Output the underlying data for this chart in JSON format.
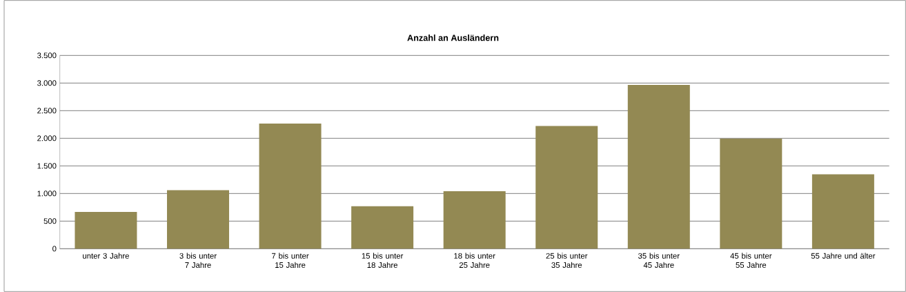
{
  "chart_data": {
    "type": "bar",
    "title": "Anzahl an Ausländern",
    "categories": [
      "unter 3 Jahre",
      "3 bis unter 7 Jahre",
      "7 bis unter 15 Jahre",
      "15 bis unter 18 Jahre",
      "18 bis unter 25 Jahre",
      "25 bis unter 35 Jahre",
      "35 bis unter 45 Jahre",
      "45 bis unter 55 Jahre",
      "55 Jahre und älter"
    ],
    "values": [
      665,
      1061,
      2265,
      771,
      1042,
      2222,
      2968,
      1995,
      1349
    ],
    "color": "#938953",
    "ylim": [
      0,
      3500
    ],
    "yticks": [
      0,
      500,
      {
        "value": 1000,
        "label": "1.000"
      },
      {
        "value": 1500,
        "label": "1.500"
      },
      {
        "value": 2000,
        "label": "2.000"
      },
      {
        "value": 2500,
        "label": "2.500"
      },
      {
        "value": 3000,
        "label": "3.000"
      },
      {
        "value": 3500,
        "label": "3.500"
      }
    ],
    "grid": "y"
  }
}
